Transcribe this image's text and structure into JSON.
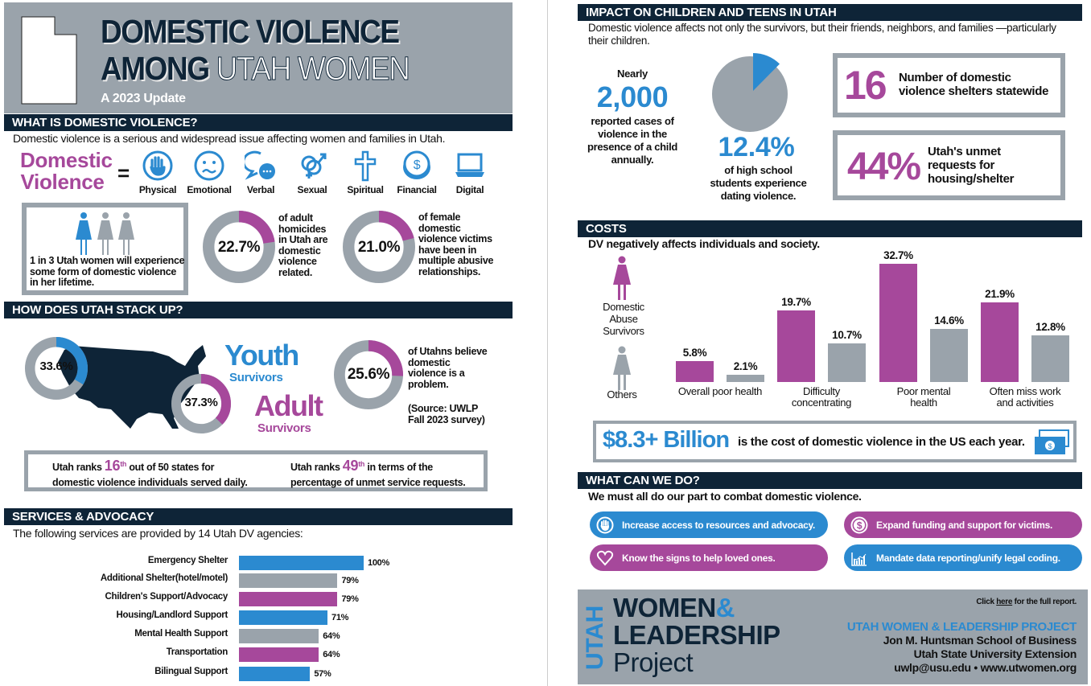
{
  "colors": {
    "navy": "#0e2437",
    "gray": "#9aa3ab",
    "purple": "#a6489b",
    "blue": "#2b8ad0"
  },
  "header": {
    "title_line1": "DOMESTIC VIOLENCE",
    "title_line2_a": "AMONG",
    "title_line2_b": "UTAH WOMEN",
    "subtitle": "A 2023 Update"
  },
  "what_is": {
    "heading": "WHAT IS DOMESTIC VIOLENCE?",
    "intro": "Domestic violence is a serious and widespread issue affecting women and families in Utah.",
    "dv_word1": "Domestic",
    "dv_word2": "Violence",
    "equals": "=",
    "types": [
      {
        "label": "Physical",
        "icon": "hand-icon"
      },
      {
        "label": "Emotional",
        "icon": "sad-face-icon"
      },
      {
        "label": "Verbal",
        "icon": "speech-bubbles-icon"
      },
      {
        "label": "Sexual",
        "icon": "gender-symbols-icon"
      },
      {
        "label": "Spiritual",
        "icon": "cross-icon"
      },
      {
        "label": "Financial",
        "icon": "coin-icon"
      },
      {
        "label": "Digital",
        "icon": "laptop-icon"
      }
    ],
    "one_in_three": "1 in 3 Utah women will experience some form of domestic violence in her lifetime.",
    "stat1": {
      "value": 22.7,
      "label": "22.7%",
      "text": "of adult homicides in Utah are domestic violence related."
    },
    "stat2": {
      "value": 21.0,
      "label": "21.0%",
      "text": "of female domestic violence victims have been in multiple abusive relationships."
    }
  },
  "stack_up": {
    "heading": "HOW DOES UTAH STACK UP?",
    "youth": {
      "value": 33.6,
      "label": "33.6%",
      "word": "Youth",
      "sub": "Survivors"
    },
    "adult": {
      "value": 37.3,
      "label": "37.3%",
      "word": "Adult",
      "sub": "Survivors"
    },
    "believe": {
      "value": 25.6,
      "label": "25.6%",
      "text": "of Utahns believe domestic violence is a problem.",
      "source": "(Source: UWLP Fall 2023 survey)"
    },
    "rank1": {
      "pre": "Utah ranks",
      "num": "16",
      "sup": "th",
      "post": "out of 50 states for",
      "line2": "domestic violence individuals served daily."
    },
    "rank2": {
      "pre": "Utah ranks",
      "num": "49",
      "sup": "th",
      "post": "in terms of the",
      "line2": "percentage of unmet service requests."
    }
  },
  "services": {
    "heading": "SERVICES & ADVOCACY",
    "intro": "The following services are provided by 14 Utah DV agencies:",
    "chart_data": {
      "type": "bar",
      "orientation": "horizontal",
      "categories": [
        "Emergency Shelter",
        "Additional Shelter(hotel/motel)",
        "Children's Support/Advocacy",
        "Housing/Landlord Support",
        "Mental Health Support",
        "Transportation",
        "Bilingual Support"
      ],
      "values": [
        100,
        79,
        79,
        71,
        64,
        64,
        57
      ],
      "value_labels": [
        "100%",
        "79%",
        "79%",
        "71%",
        "64%",
        "64%",
        "57%"
      ],
      "bar_colors": [
        "#2b8ad0",
        "#9aa3ab",
        "#a6489b",
        "#2b8ad0",
        "#9aa3ab",
        "#a6489b",
        "#2b8ad0"
      ],
      "xlim": [
        0,
        100
      ],
      "grid": false
    }
  },
  "impact": {
    "heading": "IMPACT ON CHILDREN AND TEENS IN UTAH",
    "intro": "Domestic violence affects not only the survivors, but their friends, neighbors, and families —particularly their children.",
    "nearly": "Nearly",
    "cases": "2,000",
    "cases_text": "reported cases of violence in the presence of a child annually.",
    "dating": {
      "value": 12.4,
      "label": "12.4%",
      "text": "of high school students experience dating violence."
    },
    "shelters": {
      "num": "16",
      "text": "Number of domestic violence shelters statewide"
    },
    "unmet": {
      "num": "44%",
      "text": "Utah's unmet requests for housing/shelter"
    }
  },
  "costs": {
    "heading": "COSTS",
    "intro": "DV negatively affects individuals and society.",
    "legend": [
      {
        "name": "Domestic Abuse Survivors",
        "color": "#a6489b"
      },
      {
        "name": "Others",
        "color": "#9aa3ab"
      }
    ],
    "chart_data": {
      "type": "bar",
      "categories": [
        "Overall poor health",
        "Difficulty concentrating",
        "Poor mental health",
        "Often miss work and activities"
      ],
      "series": [
        {
          "name": "Domestic Abuse Survivors",
          "values": [
            5.8,
            19.7,
            32.7,
            21.9
          ],
          "labels": [
            "5.8%",
            "19.7%",
            "32.7%",
            "21.9%"
          ]
        },
        {
          "name": "Others",
          "values": [
            2.1,
            10.7,
            14.6,
            12.8
          ],
          "labels": [
            "2.1%",
            "10.7%",
            "14.6%",
            "12.8%"
          ]
        }
      ],
      "grid": false
    },
    "billion": "$8.3+ Billion",
    "billion_text": "is the cost of domestic violence in the US each year."
  },
  "actions": {
    "heading": "WHAT CAN WE DO?",
    "intro": "We must all do our part to combat domestic violence.",
    "items": [
      {
        "text": "Increase access to resources and advocacy.",
        "icon": "hand-icon",
        "color": "blue"
      },
      {
        "text": "Expand funding and support for victims.",
        "icon": "dollar-icon",
        "color": "purple"
      },
      {
        "text": "Know the signs to help loved ones.",
        "icon": "heart-icon",
        "color": "purple"
      },
      {
        "text": "Mandate data reporting/unify legal coding.",
        "icon": "chart-icon",
        "color": "blue"
      }
    ]
  },
  "footer": {
    "logo_utah": "UTAH",
    "logo_women": "WOMEN",
    "logo_amp": "&",
    "logo_leadership": "LEADERSHIP",
    "logo_project": "Project",
    "click_pre": "Click",
    "click_link": "here",
    "click_post": "for the full report.",
    "org": "UTAH WOMEN & LEADERSHIP PROJECT",
    "school": "Jon M. Huntsman School of Business",
    "ext": "Utah State University Extension",
    "contact": "uwlp@usu.edu • www.utwomen.org"
  }
}
